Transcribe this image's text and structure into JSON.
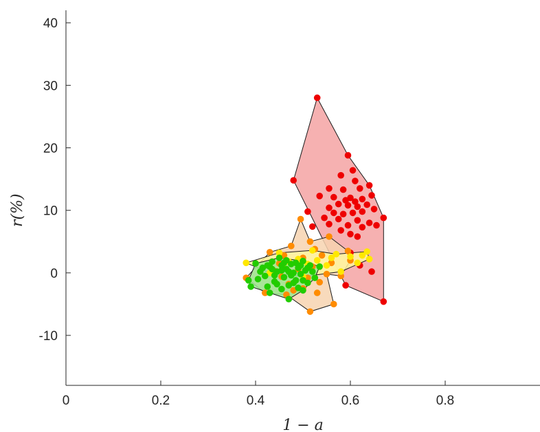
{
  "chart_data": {
    "type": "scatter",
    "title": "",
    "xlabel": "1 − a",
    "ylabel": "r(%)",
    "xlim": [
      0,
      1
    ],
    "ylim": [
      -18,
      42
    ],
    "xticks": [
      0,
      0.2,
      0.4,
      0.6,
      0.8
    ],
    "xtick_labels": [
      "0",
      "0.2",
      "0.4",
      "0.6",
      "0.8"
    ],
    "yticks": [
      -10,
      0,
      10,
      20,
      30,
      40
    ],
    "ytick_labels": [
      "-10",
      "0",
      "10",
      "20",
      "30",
      "40"
    ],
    "grid": false,
    "legend": "none",
    "series": [
      {
        "color": "#ee0000",
        "fill": "#f5a3a3",
        "hull": [
          [
            0.53,
            28.0
          ],
          [
            0.595,
            18.8
          ],
          [
            0.64,
            14.0
          ],
          [
            0.67,
            8.8
          ],
          [
            0.67,
            -4.6
          ],
          [
            0.59,
            -2.0
          ],
          [
            0.48,
            14.8
          ]
        ],
        "points": [
          [
            0.53,
            28.0
          ],
          [
            0.595,
            18.8
          ],
          [
            0.64,
            14.0
          ],
          [
            0.67,
            8.8
          ],
          [
            0.67,
            -4.6
          ],
          [
            0.59,
            -2.0
          ],
          [
            0.48,
            14.8
          ],
          [
            0.605,
            16.4
          ],
          [
            0.58,
            15.6
          ],
          [
            0.61,
            14.7
          ],
          [
            0.555,
            13.5
          ],
          [
            0.585,
            13.3
          ],
          [
            0.62,
            13.5
          ],
          [
            0.645,
            12.4
          ],
          [
            0.535,
            12.3
          ],
          [
            0.565,
            12.1
          ],
          [
            0.6,
            12.0
          ],
          [
            0.59,
            11.6
          ],
          [
            0.61,
            11.4
          ],
          [
            0.625,
            11.8
          ],
          [
            0.575,
            11.0
          ],
          [
            0.595,
            10.8
          ],
          [
            0.615,
            10.6
          ],
          [
            0.635,
            10.9
          ],
          [
            0.555,
            10.4
          ],
          [
            0.65,
            10.2
          ],
          [
            0.565,
            9.6
          ],
          [
            0.585,
            9.4
          ],
          [
            0.605,
            9.6
          ],
          [
            0.625,
            9.8
          ],
          [
            0.545,
            8.8
          ],
          [
            0.575,
            8.6
          ],
          [
            0.615,
            8.4
          ],
          [
            0.64,
            8.0
          ],
          [
            0.555,
            7.8
          ],
          [
            0.595,
            7.6
          ],
          [
            0.625,
            7.3
          ],
          [
            0.655,
            7.6
          ],
          [
            0.58,
            6.8
          ],
          [
            0.6,
            6.2
          ],
          [
            0.615,
            5.8
          ],
          [
            0.52,
            7.4
          ],
          [
            0.51,
            9.8
          ],
          [
            0.6,
            3.2
          ],
          [
            0.62,
            1.2
          ],
          [
            0.645,
            0.2
          ]
        ]
      },
      {
        "color": "#ff8c00",
        "fill": "#f7d3b0",
        "hull": [
          [
            0.495,
            8.6
          ],
          [
            0.515,
            5.0
          ],
          [
            0.555,
            5.8
          ],
          [
            0.595,
            3.5
          ],
          [
            0.6,
            2.0
          ],
          [
            0.58,
            -0.5
          ],
          [
            0.55,
            -0.2
          ],
          [
            0.565,
            -5.0
          ],
          [
            0.515,
            -6.2
          ],
          [
            0.465,
            -3.5
          ],
          [
            0.42,
            -3.2
          ],
          [
            0.38,
            -0.8
          ],
          [
            0.43,
            3.3
          ],
          [
            0.475,
            4.3
          ]
        ],
        "points": [
          [
            0.495,
            8.6
          ],
          [
            0.515,
            5.0
          ],
          [
            0.555,
            5.8
          ],
          [
            0.595,
            3.5
          ],
          [
            0.6,
            2.0
          ],
          [
            0.58,
            -0.5
          ],
          [
            0.55,
            -0.2
          ],
          [
            0.565,
            -5.0
          ],
          [
            0.515,
            -6.2
          ],
          [
            0.465,
            -3.5
          ],
          [
            0.42,
            -3.2
          ],
          [
            0.38,
            -0.8
          ],
          [
            0.43,
            3.3
          ],
          [
            0.475,
            4.3
          ],
          [
            0.45,
            1.5
          ],
          [
            0.5,
            2.4
          ],
          [
            0.52,
            1.0
          ],
          [
            0.54,
            2.8
          ],
          [
            0.47,
            -1.8
          ],
          [
            0.5,
            -2.5
          ],
          [
            0.53,
            -3.2
          ],
          [
            0.44,
            0.3
          ],
          [
            0.56,
            1.6
          ],
          [
            0.49,
            0.6
          ],
          [
            0.51,
            -0.8
          ],
          [
            0.46,
            2.8
          ],
          [
            0.535,
            -1.5
          ],
          [
            0.48,
            -2.8
          ],
          [
            0.525,
            3.8
          ],
          [
            0.455,
            -0.6
          ]
        ]
      },
      {
        "color": "#ffe800",
        "fill": "#fff4a0",
        "hull": [
          [
            0.38,
            1.6
          ],
          [
            0.45,
            3.2
          ],
          [
            0.52,
            3.6
          ],
          [
            0.57,
            3.0
          ],
          [
            0.635,
            3.4
          ],
          [
            0.64,
            2.2
          ],
          [
            0.58,
            0.2
          ],
          [
            0.5,
            -0.6
          ],
          [
            0.43,
            0.0
          ]
        ],
        "points": [
          [
            0.38,
            1.6
          ],
          [
            0.45,
            3.2
          ],
          [
            0.52,
            3.6
          ],
          [
            0.57,
            3.0
          ],
          [
            0.635,
            3.4
          ],
          [
            0.64,
            2.2
          ],
          [
            0.58,
            0.2
          ],
          [
            0.5,
            -0.6
          ],
          [
            0.43,
            0.0
          ],
          [
            0.47,
            1.8
          ],
          [
            0.49,
            2.2
          ],
          [
            0.51,
            1.4
          ],
          [
            0.53,
            2.0
          ],
          [
            0.55,
            1.2
          ],
          [
            0.6,
            2.6
          ],
          [
            0.615,
            1.6
          ],
          [
            0.46,
            0.8
          ],
          [
            0.56,
            2.4
          ],
          [
            0.505,
            0.4
          ],
          [
            0.625,
            2.8
          ]
        ]
      },
      {
        "color": "#22cc00",
        "fill": "#9be690",
        "hull": [
          [
            0.385,
            -1.2
          ],
          [
            0.4,
            1.5
          ],
          [
            0.45,
            2.4
          ],
          [
            0.5,
            1.9
          ],
          [
            0.535,
            1.0
          ],
          [
            0.525,
            -0.8
          ],
          [
            0.5,
            -2.8
          ],
          [
            0.47,
            -4.2
          ],
          [
            0.43,
            -3.2
          ],
          [
            0.39,
            -2.2
          ]
        ],
        "points": [
          [
            0.385,
            -1.2
          ],
          [
            0.4,
            1.5
          ],
          [
            0.45,
            2.4
          ],
          [
            0.5,
            1.9
          ],
          [
            0.535,
            1.0
          ],
          [
            0.525,
            -0.8
          ],
          [
            0.5,
            -2.8
          ],
          [
            0.47,
            -4.2
          ],
          [
            0.43,
            -3.2
          ],
          [
            0.39,
            -2.2
          ],
          [
            0.41,
            0.2
          ],
          [
            0.42,
            -0.5
          ],
          [
            0.43,
            1.0
          ],
          [
            0.44,
            -1.4
          ],
          [
            0.445,
            0.2
          ],
          [
            0.455,
            1.2
          ],
          [
            0.46,
            -0.7
          ],
          [
            0.465,
            0.6
          ],
          [
            0.47,
            -2.0
          ],
          [
            0.475,
            1.4
          ],
          [
            0.48,
            0.0
          ],
          [
            0.485,
            -1.2
          ],
          [
            0.49,
            0.8
          ],
          [
            0.495,
            -0.2
          ],
          [
            0.505,
            0.4
          ],
          [
            0.51,
            -1.6
          ],
          [
            0.515,
            1.2
          ],
          [
            0.425,
            -2.2
          ],
          [
            0.435,
            1.8
          ],
          [
            0.455,
            -2.6
          ],
          [
            0.475,
            -0.4
          ],
          [
            0.5,
            -1.2
          ],
          [
            0.415,
            0.8
          ],
          [
            0.445,
            -1.8
          ],
          [
            0.465,
            2.0
          ],
          [
            0.485,
            1.6
          ],
          [
            0.52,
            0.2
          ],
          [
            0.405,
            -1.0
          ],
          [
            0.455,
            0.4
          ],
          [
            0.49,
            -2.4
          ],
          [
            0.44,
            -0.4
          ],
          [
            0.46,
            1.6
          ],
          [
            0.48,
            -1.6
          ],
          [
            0.435,
            0.6
          ],
          [
            0.51,
            0.8
          ],
          [
            0.47,
            0.2
          ],
          [
            0.425,
            1.2
          ],
          [
            0.495,
            1.2
          ]
        ]
      }
    ]
  }
}
